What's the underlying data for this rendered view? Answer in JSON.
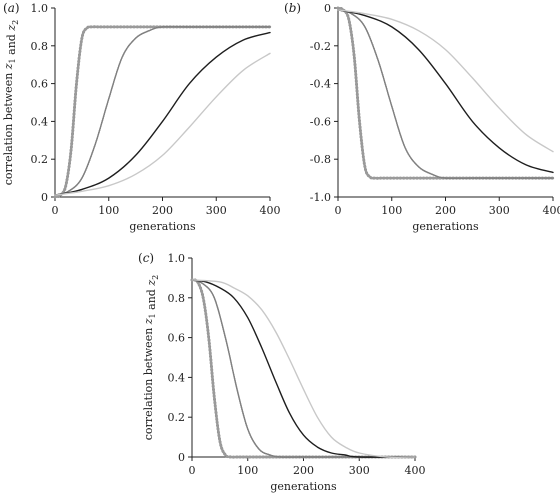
{
  "figure": {
    "panels": [
      {
        "label": "a"
      },
      {
        "label": "b"
      },
      {
        "label": "c"
      }
    ]
  },
  "chart_data": [
    {
      "panel": "a",
      "type": "line",
      "xlabel": "generations",
      "ylabel": "correlation between z1 and z2",
      "xlim": [
        0,
        400
      ],
      "ylim": [
        0,
        1.0
      ],
      "xticks": [
        0,
        100,
        200,
        300,
        400
      ],
      "yticks": [
        0,
        0.2,
        0.4,
        0.6,
        0.8,
        1.0
      ],
      "grid": false,
      "series": [
        {
          "style": "dotted-thick",
          "color": "#8a8a8a",
          "x": [
            0,
            10,
            20,
            30,
            40,
            50,
            60,
            70,
            80,
            100,
            150,
            200,
            300,
            400
          ],
          "y": [
            0,
            0.01,
            0.06,
            0.25,
            0.6,
            0.84,
            0.895,
            0.9,
            0.9,
            0.9,
            0.9,
            0.9,
            0.9,
            0.9
          ]
        },
        {
          "style": "solid-thick",
          "color": "#9a9a9a",
          "x": [
            0,
            10,
            20,
            30,
            40,
            50,
            60,
            70,
            80,
            100,
            150,
            200,
            300,
            400
          ],
          "y": [
            0,
            0.01,
            0.06,
            0.25,
            0.6,
            0.84,
            0.895,
            0.9,
            0.9,
            0.9,
            0.9,
            0.9,
            0.9,
            0.9
          ]
        },
        {
          "style": "dotted",
          "color": "#555555",
          "x": [
            0,
            25,
            50,
            75,
            100,
            125,
            150,
            175,
            200,
            250,
            300,
            400
          ],
          "y": [
            0.01,
            0.03,
            0.1,
            0.28,
            0.52,
            0.74,
            0.84,
            0.88,
            0.9,
            0.9,
            0.9,
            0.9
          ]
        },
        {
          "style": "solid",
          "color": "#808080",
          "x": [
            0,
            25,
            50,
            75,
            100,
            125,
            150,
            175,
            200,
            250,
            300,
            400
          ],
          "y": [
            0.01,
            0.03,
            0.1,
            0.28,
            0.52,
            0.74,
            0.84,
            0.88,
            0.9,
            0.9,
            0.9,
            0.9
          ]
        },
        {
          "style": "solid",
          "color": "#1e1e1e",
          "x": [
            0,
            50,
            100,
            150,
            200,
            250,
            300,
            350,
            400
          ],
          "y": [
            0.01,
            0.04,
            0.1,
            0.22,
            0.4,
            0.6,
            0.74,
            0.83,
            0.87
          ]
        },
        {
          "style": "solid",
          "color": "#c8c8c8",
          "x": [
            0,
            50,
            100,
            150,
            200,
            250,
            300,
            350,
            400
          ],
          "y": [
            0.01,
            0.03,
            0.06,
            0.12,
            0.22,
            0.37,
            0.53,
            0.67,
            0.76
          ]
        }
      ]
    },
    {
      "panel": "b",
      "type": "line",
      "xlabel": "generations",
      "ylabel": "",
      "xlim": [
        0,
        400
      ],
      "ylim": [
        -1.0,
        0
      ],
      "xticks": [
        0,
        100,
        200,
        300,
        400
      ],
      "yticks": [
        0,
        -0.2,
        -0.4,
        -0.6,
        -0.8,
        -1.0
      ],
      "grid": false,
      "series": [
        {
          "style": "dotted-thick",
          "color": "#8a8a8a",
          "x": [
            0,
            10,
            20,
            30,
            40,
            50,
            60,
            70,
            80,
            100,
            150,
            200,
            300,
            400
          ],
          "y": [
            0,
            -0.01,
            -0.06,
            -0.25,
            -0.6,
            -0.84,
            -0.895,
            -0.9,
            -0.9,
            -0.9,
            -0.9,
            -0.9,
            -0.9,
            -0.9
          ]
        },
        {
          "style": "solid-thick",
          "color": "#9a9a9a",
          "x": [
            0,
            10,
            20,
            30,
            40,
            50,
            60,
            70,
            80,
            100,
            150,
            200,
            300,
            400
          ],
          "y": [
            0,
            -0.01,
            -0.06,
            -0.25,
            -0.6,
            -0.84,
            -0.895,
            -0.9,
            -0.9,
            -0.9,
            -0.9,
            -0.9,
            -0.9,
            -0.9
          ]
        },
        {
          "style": "dotted",
          "color": "#555555",
          "x": [
            0,
            25,
            50,
            75,
            100,
            125,
            150,
            175,
            200,
            250,
            300,
            400
          ],
          "y": [
            -0.01,
            -0.03,
            -0.1,
            -0.28,
            -0.52,
            -0.74,
            -0.84,
            -0.88,
            -0.9,
            -0.9,
            -0.9,
            -0.9
          ]
        },
        {
          "style": "solid",
          "color": "#808080",
          "x": [
            0,
            25,
            50,
            75,
            100,
            125,
            150,
            175,
            200,
            250,
            300,
            400
          ],
          "y": [
            -0.01,
            -0.03,
            -0.1,
            -0.28,
            -0.52,
            -0.74,
            -0.84,
            -0.88,
            -0.9,
            -0.9,
            -0.9,
            -0.9
          ]
        },
        {
          "style": "solid",
          "color": "#1e1e1e",
          "x": [
            0,
            50,
            100,
            150,
            200,
            250,
            300,
            350,
            400
          ],
          "y": [
            -0.01,
            -0.04,
            -0.1,
            -0.22,
            -0.4,
            -0.6,
            -0.74,
            -0.83,
            -0.87
          ]
        },
        {
          "style": "solid",
          "color": "#c8c8c8",
          "x": [
            0,
            50,
            100,
            150,
            200,
            250,
            300,
            350,
            400
          ],
          "y": [
            -0.01,
            -0.03,
            -0.06,
            -0.12,
            -0.22,
            -0.37,
            -0.53,
            -0.67,
            -0.76
          ]
        }
      ]
    },
    {
      "panel": "c",
      "type": "line",
      "xlabel": "generations",
      "ylabel": "correlation between z1 and z2",
      "xlim": [
        0,
        400
      ],
      "ylim": [
        0,
        1.0
      ],
      "xticks": [
        0,
        100,
        200,
        300,
        400
      ],
      "yticks": [
        0,
        0.2,
        0.4,
        0.6,
        0.8,
        1.0
      ],
      "grid": false,
      "series": [
        {
          "style": "dotted-thick",
          "color": "#8a8a8a",
          "x": [
            0,
            10,
            20,
            30,
            40,
            50,
            60,
            70,
            80,
            100,
            200,
            300,
            400
          ],
          "y": [
            0.89,
            0.88,
            0.8,
            0.6,
            0.3,
            0.08,
            0.01,
            0,
            0,
            0,
            0,
            0,
            0
          ]
        },
        {
          "style": "solid-thick",
          "color": "#9a9a9a",
          "x": [
            0,
            10,
            20,
            30,
            40,
            50,
            60,
            70,
            80,
            100,
            200,
            300,
            400
          ],
          "y": [
            0.89,
            0.88,
            0.8,
            0.6,
            0.3,
            0.08,
            0.01,
            0,
            0,
            0,
            0,
            0,
            0
          ]
        },
        {
          "style": "dotted",
          "color": "#555555",
          "x": [
            0,
            20,
            40,
            60,
            80,
            100,
            120,
            140,
            160,
            200,
            300,
            400
          ],
          "y": [
            0.89,
            0.87,
            0.8,
            0.6,
            0.35,
            0.14,
            0.04,
            0.01,
            0,
            0,
            0,
            0
          ]
        },
        {
          "style": "solid",
          "color": "#808080",
          "x": [
            0,
            20,
            40,
            60,
            80,
            100,
            120,
            140,
            160,
            200,
            300,
            400
          ],
          "y": [
            0.89,
            0.87,
            0.8,
            0.6,
            0.35,
            0.14,
            0.04,
            0.01,
            0,
            0,
            0,
            0
          ]
        },
        {
          "style": "solid",
          "color": "#1e1e1e",
          "x": [
            0,
            25,
            50,
            75,
            100,
            125,
            150,
            175,
            200,
            225,
            250,
            275,
            300,
            400
          ],
          "y": [
            0.89,
            0.88,
            0.85,
            0.8,
            0.7,
            0.55,
            0.38,
            0.22,
            0.11,
            0.05,
            0.02,
            0.01,
            0,
            0
          ]
        },
        {
          "style": "solid",
          "color": "#c8c8c8",
          "x": [
            0,
            50,
            75,
            100,
            125,
            150,
            175,
            200,
            225,
            250,
            275,
            300,
            350,
            400
          ],
          "y": [
            0.89,
            0.88,
            0.85,
            0.81,
            0.74,
            0.63,
            0.49,
            0.34,
            0.2,
            0.1,
            0.05,
            0.02,
            0,
            0
          ]
        }
      ]
    }
  ]
}
